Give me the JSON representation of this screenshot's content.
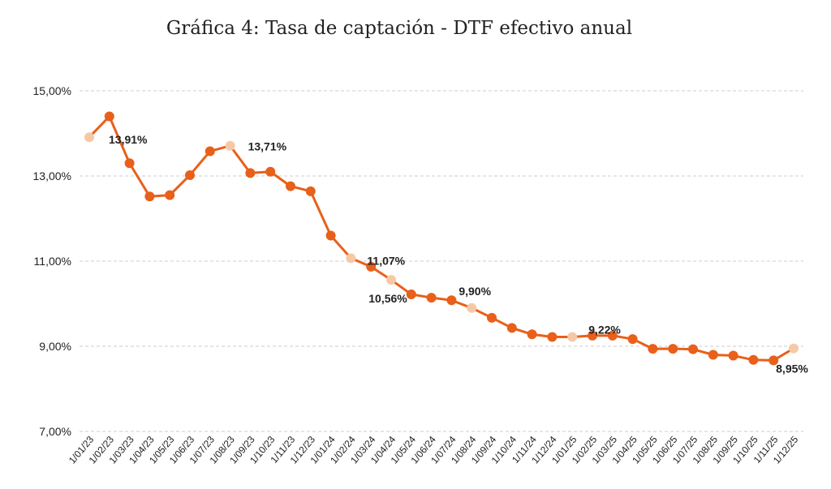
{
  "chart_data": {
    "type": "line",
    "title": "Gráfica 4: Tasa de captación - DTF efectivo anual",
    "xlabel": "",
    "ylabel": "",
    "ylim": [
      7,
      15
    ],
    "yticks": [
      7,
      9,
      11,
      13,
      15
    ],
    "ytick_labels": [
      "7,00%",
      "9,00%",
      "11,00%",
      "13,00%",
      "15,00%"
    ],
    "grid": true,
    "legend": "none",
    "categories": [
      "1/01/23",
      "1/02/23",
      "1/03/23",
      "1/04/23",
      "1/05/23",
      "1/06/23",
      "1/07/23",
      "1/08/23",
      "1/09/23",
      "1/10/23",
      "1/11/23",
      "1/12/23",
      "1/01/24",
      "1/02/24",
      "1/03/24",
      "1/04/24",
      "1/05/24",
      "1/06/24",
      "1/07/24",
      "1/08/24",
      "1/09/24",
      "1/10/24",
      "1/11/24",
      "1/12/24",
      "1/01/25",
      "1/02/25",
      "1/03/25",
      "1/04/25",
      "1/05/25",
      "1/06/25",
      "1/07/25",
      "1/08/25",
      "1/09/25",
      "1/10/25",
      "1/11/25",
      "1/12/25"
    ],
    "series": [
      {
        "values": [
          13.91,
          14.4,
          13.3,
          12.52,
          12.55,
          13.02,
          13.58,
          13.71,
          13.07,
          13.1,
          12.76,
          12.64,
          11.6,
          11.07,
          10.87,
          10.56,
          10.22,
          10.14,
          10.08,
          9.9,
          9.67,
          9.43,
          9.28,
          9.22,
          9.22,
          9.25,
          9.25,
          9.17,
          8.94,
          8.94,
          8.93,
          8.8,
          8.78,
          8.68,
          8.67,
          8.95
        ],
        "highlight_indices": [
          0,
          7,
          13,
          15,
          19,
          24,
          35
        ]
      }
    ],
    "data_labels": [
      {
        "index": 0,
        "text": "13,91%"
      },
      {
        "index": 7,
        "text": "13,71%"
      },
      {
        "index": 13,
        "text": "11,07%"
      },
      {
        "index": 15,
        "text": "10,56%"
      },
      {
        "index": 19,
        "text": "9,90%"
      },
      {
        "index": 24,
        "text": "9,22%"
      },
      {
        "index": 35,
        "text": "8,95%"
      }
    ],
    "colors": {
      "line": "#e8601a",
      "marker": "#e8601a",
      "highlight_marker": "#f6c9a6",
      "grid": "#cccccc"
    }
  }
}
